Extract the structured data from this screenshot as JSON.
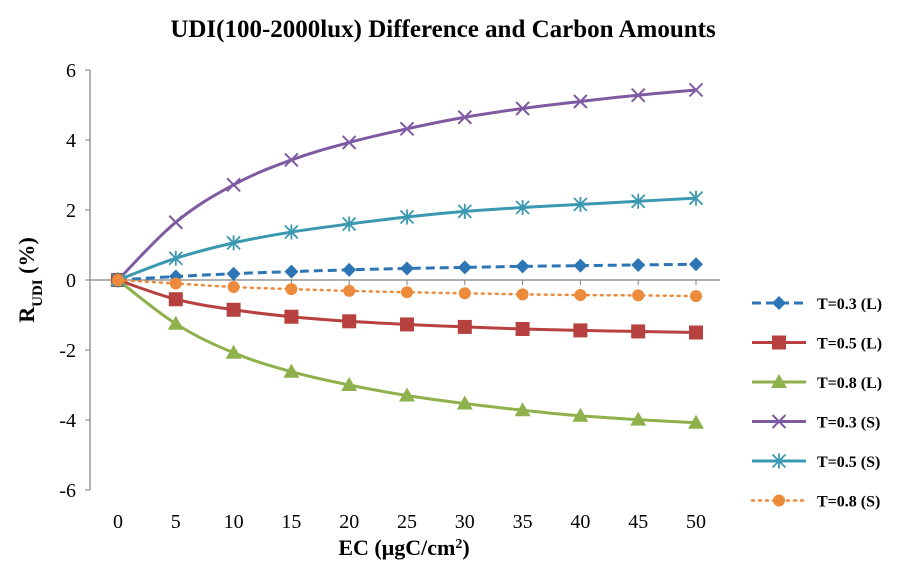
{
  "chart_data": {
    "type": "line",
    "title": "UDI(100-2000lux) Difference and Carbon Amounts",
    "xlabel": "EC (μgC/cm²)",
    "xlabel_main": "EC (μgC/cm",
    "xlabel_sup": "2",
    "xlabel_end": ")",
    "ylabel_main": "R",
    "ylabel_sub": "UDI",
    "ylabel_end": " (%)",
    "x": [
      0,
      5,
      10,
      15,
      20,
      25,
      30,
      35,
      40,
      45,
      50
    ],
    "x_ticks": [
      "0",
      "5",
      "10",
      "15",
      "20",
      "25",
      "30",
      "35",
      "40",
      "45",
      "50"
    ],
    "ylim": [
      -6,
      6
    ],
    "y_ticks": [
      "-6",
      "-4",
      "-2",
      "0",
      "2",
      "4",
      "6"
    ],
    "y_tick_values": [
      -6,
      -4,
      -2,
      0,
      2,
      4,
      6
    ],
    "grid": false,
    "legend_position": "right",
    "series": [
      {
        "name": "T=0.3 (L)",
        "color": "#2E75B6",
        "marker": "diamond",
        "dash": "dashed",
        "values": [
          0,
          0.1,
          0.18,
          0.24,
          0.29,
          0.33,
          0.36,
          0.39,
          0.41,
          0.43,
          0.45
        ]
      },
      {
        "name": "T=0.5 (L)",
        "color": "#B7413E",
        "marker": "square",
        "dash": "solid",
        "values": [
          0,
          -0.55,
          -0.85,
          -1.05,
          -1.18,
          -1.27,
          -1.34,
          -1.4,
          -1.44,
          -1.47,
          -1.5
        ]
      },
      {
        "name": "T=0.8 (L)",
        "color": "#8FB14C",
        "marker": "triangle",
        "dash": "solid",
        "values": [
          0,
          -1.25,
          -2.08,
          -2.62,
          -3.0,
          -3.3,
          -3.53,
          -3.72,
          -3.88,
          -3.99,
          -4.08
        ]
      },
      {
        "name": "T=0.3 (S)",
        "color": "#7E5AA2",
        "marker": "x",
        "dash": "solid",
        "values": [
          0,
          1.65,
          2.72,
          3.43,
          3.93,
          4.32,
          4.65,
          4.9,
          5.1,
          5.28,
          5.43
        ]
      },
      {
        "name": "T=0.5 (S)",
        "color": "#3A98B0",
        "marker": "star",
        "dash": "solid",
        "values": [
          0,
          0.62,
          1.06,
          1.37,
          1.6,
          1.8,
          1.96,
          2.07,
          2.16,
          2.25,
          2.34
        ]
      },
      {
        "name": "T=0.8 (S)",
        "color": "#ED8B3D",
        "marker": "circle",
        "dash": "dotted",
        "values": [
          0,
          -0.1,
          -0.2,
          -0.26,
          -0.31,
          -0.35,
          -0.38,
          -0.41,
          -0.43,
          -0.44,
          -0.46
        ]
      }
    ]
  }
}
